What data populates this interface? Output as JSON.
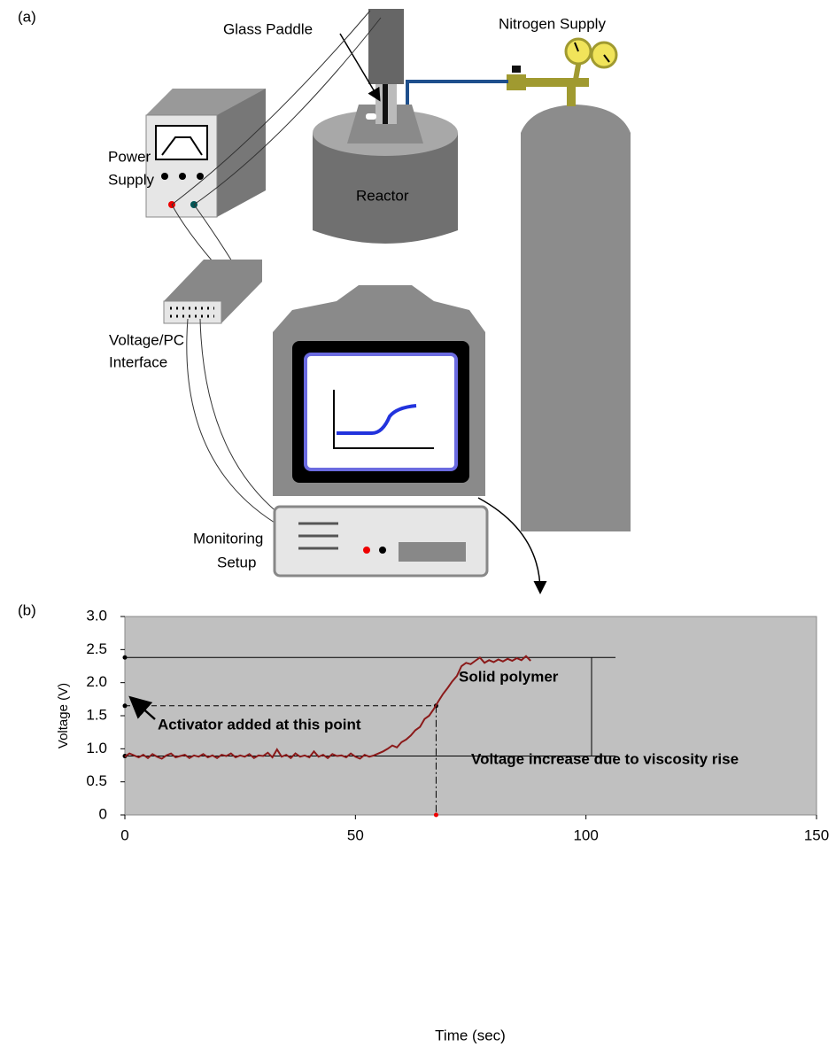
{
  "diagram": {
    "panel_label": "(a)",
    "glass_paddle": "Glass Paddle",
    "nitrogen_supply": "Nitrogen Supply",
    "power_supply": [
      "Power",
      "Supply"
    ],
    "reactor": "Reactor",
    "interface": [
      "Voltage/PC",
      "Interface"
    ],
    "monitoring": [
      "Monitoring",
      "Setup"
    ]
  },
  "chart_data": {
    "type": "line",
    "panel_label": "(b)",
    "x_label": "Time (sec)",
    "y_label": "Voltage (V)",
    "xlim": [
      0,
      150
    ],
    "ylim": [
      0,
      3
    ],
    "xticks": [
      0,
      50,
      100,
      150
    ],
    "yticks": [
      0,
      0.5,
      {
        "value": 1,
        "label": "1.0"
      },
      1.5,
      {
        "value": 2,
        "label": "2.0"
      },
      2.5,
      {
        "value": 3,
        "label": "3.0"
      }
    ],
    "x": [
      0,
      1,
      2,
      3,
      4,
      5,
      6,
      7,
      8,
      9,
      10,
      11,
      12,
      13,
      14,
      15,
      16,
      17,
      18,
      19,
      20,
      21,
      22,
      23,
      24,
      25,
      26,
      27,
      28,
      29,
      30,
      31,
      32,
      33,
      34,
      35,
      36,
      37,
      38,
      39,
      40,
      41,
      42,
      43,
      44,
      45,
      46,
      47,
      48,
      49,
      50,
      51,
      52,
      53,
      54,
      55,
      56,
      57,
      58,
      59,
      60,
      61,
      62,
      63,
      64,
      65,
      66,
      67,
      68,
      69,
      70,
      71,
      72,
      73,
      74,
      75,
      76,
      77,
      78,
      79,
      80,
      81,
      82,
      83,
      84,
      85,
      86,
      87,
      88
    ],
    "series": [
      {
        "color": "#8b1a1a",
        "values": [
          0.88,
          0.93,
          0.9,
          0.87,
          0.91,
          0.86,
          0.92,
          0.88,
          0.85,
          0.9,
          0.93,
          0.87,
          0.89,
          0.91,
          0.86,
          0.9,
          0.88,
          0.92,
          0.87,
          0.9,
          0.86,
          0.91,
          0.89,
          0.93,
          0.87,
          0.9,
          0.88,
          0.92,
          0.86,
          0.9,
          0.89,
          0.94,
          0.87,
          0.99,
          0.88,
          0.91,
          0.86,
          0.93,
          0.88,
          0.9,
          0.87,
          0.96,
          0.88,
          0.91,
          0.86,
          0.92,
          0.89,
          0.9,
          0.87,
          0.93,
          0.88,
          0.85,
          0.91,
          0.88,
          0.9,
          0.93,
          0.96,
          1.0,
          1.05,
          1.02,
          1.1,
          1.14,
          1.2,
          1.28,
          1.33,
          1.45,
          1.5,
          1.6,
          1.72,
          1.83,
          1.92,
          2.02,
          2.1,
          2.25,
          2.3,
          2.28,
          2.33,
          2.38,
          2.3,
          2.34,
          2.31,
          2.35,
          2.32,
          2.36,
          2.33,
          2.37,
          2.34,
          2.4,
          2.33
        ]
      }
    ],
    "levels": {
      "solid": 2.38,
      "start": 0.89,
      "mid_x": 67.5,
      "mid_y": 1.65
    },
    "annotations": {
      "solid": "Solid polymer",
      "rise": "Voltage increase due to viscosity rise",
      "activator": "Activator added at this point"
    }
  }
}
